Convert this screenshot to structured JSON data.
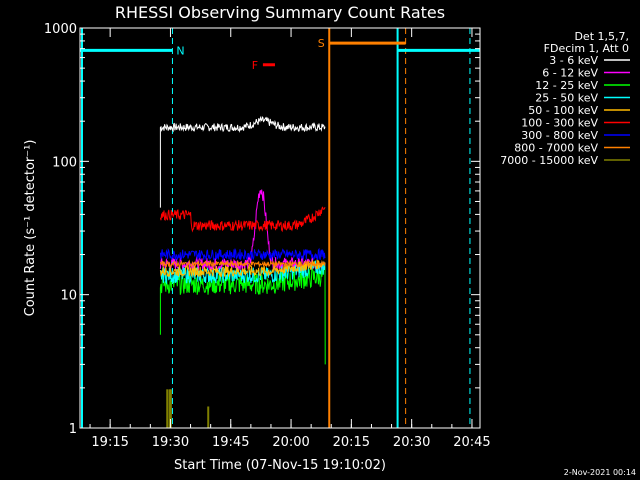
{
  "chart_data": {
    "type": "line",
    "title": "RHESSI Observing Summary Count Rates",
    "xlabel": "Start Time (07-Nov-15 19:10:02)",
    "ylabel": "Count Rate (s⁻¹ detector⁻¹)",
    "yscale": "log",
    "xlim_minutes": [
      -2.5,
      97
    ],
    "ylim": [
      1,
      1000
    ],
    "x_ticks": [
      {
        "min": 5,
        "label": "19:15"
      },
      {
        "min": 20,
        "label": "19:30"
      },
      {
        "min": 35,
        "label": "19:45"
      },
      {
        "min": 50,
        "label": "20:00"
      },
      {
        "min": 65,
        "label": "20:15"
      },
      {
        "min": 80,
        "label": "20:30"
      },
      {
        "min": 95,
        "label": "20:45"
      }
    ],
    "y_ticks": [
      {
        "value": 1,
        "label": "1"
      },
      {
        "value": 10,
        "label": "10"
      },
      {
        "value": 100,
        "label": "100"
      },
      {
        "value": 1000,
        "label": "1000"
      }
    ],
    "legend_header": [
      "Det 1,5,7,",
      "FDecim 1, Att 0"
    ],
    "series": [
      {
        "name": "3 - 6 keV",
        "color": "#000000",
        "level": 180,
        "noise": 0.03
      },
      {
        "name": "6 - 12 keV",
        "color": "#ff00ff",
        "level": 17,
        "noise": 0.05
      },
      {
        "name": "12 - 25 keV",
        "color": "#00ff00",
        "level": 12,
        "noise": 0.08
      },
      {
        "name": "25 - 50 keV",
        "color": "#00ffff",
        "level": 14,
        "noise": 0.06
      },
      {
        "name": "50 - 100 keV",
        "color": "#ffbb00",
        "level": 15,
        "noise": 0.04
      },
      {
        "name": "100 - 300 keV",
        "color": "#ff0000",
        "level": 33,
        "noise": 0.04
      },
      {
        "name": "300 - 800 keV",
        "color": "#0000ff",
        "level": 20,
        "noise": 0.04
      },
      {
        "name": "800 - 7000 keV",
        "color": "#ff8000",
        "level": 17,
        "noise": 0.02
      },
      {
        "name": "7000 - 15000 keV",
        "color": "#808000",
        "level": 1.5,
        "noise": 0
      }
    ],
    "data_interval_minutes": [
      17.5,
      58.5
    ],
    "annotations": [
      {
        "label": "N",
        "color": "#00ffff",
        "start_min": -2.5,
        "end_min": 20.5,
        "level": 680
      },
      {
        "label": "F",
        "color": "#ff0000",
        "start_min": 43,
        "end_min": 46,
        "level": 530
      },
      {
        "label": "S",
        "color": "#ff8000",
        "start_min": 59.5,
        "end_min": 78.5,
        "level": 770
      },
      {
        "label": "",
        "color": "#00ffff",
        "start_min": 76.5,
        "end_min": 97,
        "level": 680
      }
    ],
    "solid_vlines": [
      {
        "min": 59.5,
        "color": "#ff8000"
      },
      {
        "min": 76.5,
        "color": "#00ffff"
      }
    ],
    "dashed_vlines": [
      {
        "min": 20.5,
        "color": "#00ffff"
      },
      {
        "min": 78.5,
        "color": "#ff8000"
      },
      {
        "min": 94.5,
        "color": "#00ffff"
      }
    ]
  },
  "footer": {
    "date": "2-Nov-2021 00:14"
  }
}
